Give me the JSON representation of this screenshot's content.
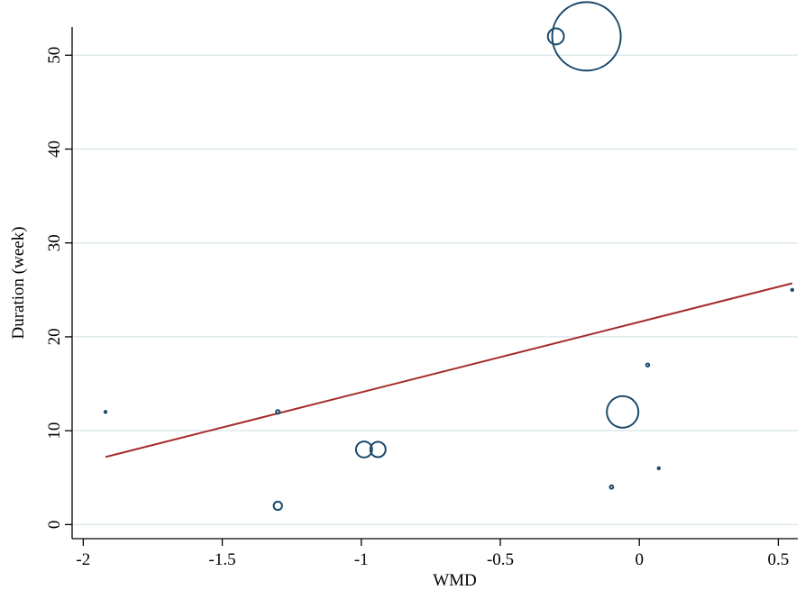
{
  "chart_data": {
    "type": "scatter",
    "title": "",
    "xlabel": "WMD",
    "ylabel": "Duration (week)",
    "xlim": [
      -2.04,
      0.57
    ],
    "ylim": [
      -1.5,
      53
    ],
    "xticks": [
      -2,
      -1.5,
      -1,
      -0.5,
      0,
      0.5
    ],
    "xtick_labels": [
      "-2",
      "-1.5",
      "-1",
      "-0.5",
      "0",
      "0.5"
    ],
    "yticks": [
      0,
      10,
      20,
      30,
      40,
      50
    ],
    "ytick_labels": [
      "0",
      "10",
      "20",
      "30",
      "40",
      "50"
    ],
    "grid": "horizontal",
    "points": [
      {
        "x": -1.92,
        "y": 12,
        "weight": 0.3
      },
      {
        "x": -1.3,
        "y": 12,
        "weight": 1.2
      },
      {
        "x": -1.3,
        "y": 2,
        "weight": 6
      },
      {
        "x": -0.99,
        "y": 8,
        "weight": 22
      },
      {
        "x": -0.94,
        "y": 8,
        "weight": 20
      },
      {
        "x": -0.3,
        "y": 52,
        "weight": 22
      },
      {
        "x": -0.19,
        "y": 52,
        "weight": 400
      },
      {
        "x": -0.1,
        "y": 4,
        "weight": 1
      },
      {
        "x": -0.06,
        "y": 12,
        "weight": 85
      },
      {
        "x": 0.03,
        "y": 17,
        "weight": 0.8
      },
      {
        "x": 0.07,
        "y": 6,
        "weight": 0.1
      },
      {
        "x": 0.55,
        "y": 25,
        "weight": 0.1
      }
    ],
    "fit_line": {
      "x": [
        -1.92,
        0.55
      ],
      "y": [
        7.2,
        25.7
      ]
    },
    "colors": {
      "points": "#1a4a6b",
      "fit_line": "#a52a2a",
      "grid": "#dde8ee",
      "axis": "#000000"
    }
  }
}
